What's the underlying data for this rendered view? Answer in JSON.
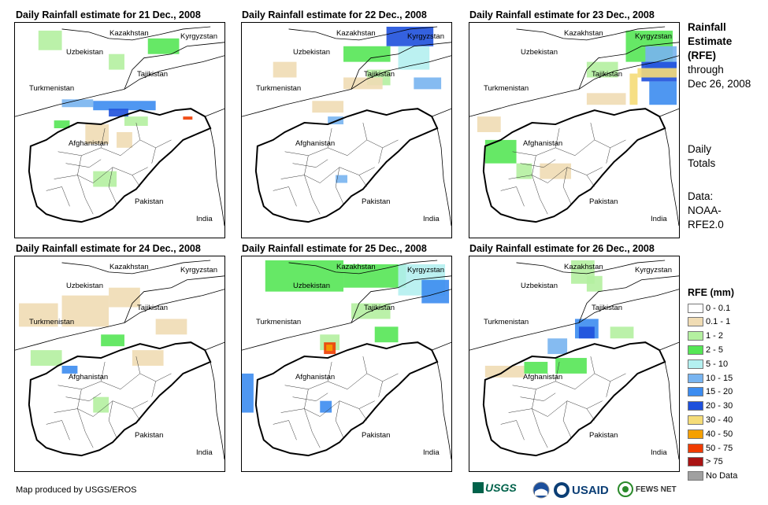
{
  "panels": [
    {
      "title": "Daily Rainfall estimate for 21 Dec., 2008"
    },
    {
      "title": "Daily Rainfall estimate for 22 Dec., 2008"
    },
    {
      "title": "Daily Rainfall estimate for 23 Dec., 2008"
    },
    {
      "title": "Daily Rainfall estimate for 24 Dec., 2008"
    },
    {
      "title": "Daily Rainfall estimate for 25 Dec., 2008"
    },
    {
      "title": "Daily Rainfall estimate for 26 Dec., 2008"
    }
  ],
  "countries": {
    "kazakhstan": "Kazakhstan",
    "kyrgyzstan": "Kyrgyzstan",
    "uzbekistan": "Uzbekistan",
    "tajikistan": "Tajikistan",
    "turkmenistan": "Turkmenistan",
    "afghanistan": "Afghanistan",
    "pakistan": "Pakistan",
    "india": "India"
  },
  "side": {
    "title_line1": "Rainfall",
    "title_line2": "Estimate",
    "title_line3": "(RFE)",
    "through": "through",
    "through_date": "Dec 26, 2008",
    "daily": "Daily",
    "totals": "Totals",
    "data": "Data:",
    "source1": "NOAA-",
    "source2": "RFE2.0"
  },
  "legend": {
    "title": "RFE (mm)",
    "items": [
      {
        "label": "0 - 0.1",
        "color": "#ffffff"
      },
      {
        "label": "0.1 - 1",
        "color": "#f0dcb4"
      },
      {
        "label": "1 - 2",
        "color": "#b4f0a0"
      },
      {
        "label": "2 - 5",
        "color": "#55e655"
      },
      {
        "label": "5 - 10",
        "color": "#b4f0f0"
      },
      {
        "label": "10 - 15",
        "color": "#78b4f0"
      },
      {
        "label": "15 - 20",
        "color": "#3c8cf0"
      },
      {
        "label": "20 - 30",
        "color": "#1e50dc"
      },
      {
        "label": "30 - 40",
        "color": "#f5dc78"
      },
      {
        "label": "40 - 50",
        "color": "#f5a000"
      },
      {
        "label": "50 - 75",
        "color": "#f03c00"
      },
      {
        "label": "> 75",
        "color": "#aa1414"
      },
      {
        "label": "No Data",
        "color": "#a0a0a0"
      }
    ]
  },
  "footer": "Map produced by USGS/EROS",
  "logos": {
    "usgs": "USGS",
    "usaid": "USAID",
    "fews": "FEWS NET"
  }
}
